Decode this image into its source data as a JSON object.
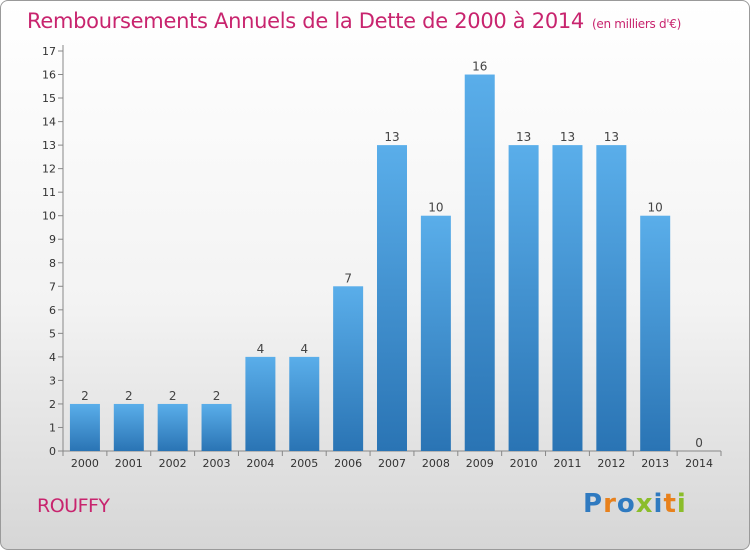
{
  "header": {
    "title": "Remboursements Annuels de la Dette de 2000 à 2014",
    "unit": "(en milliers d'€)"
  },
  "footer": {
    "place": "ROUFFY",
    "brand": "Proxiti"
  },
  "colors": {
    "title": "#c8246e",
    "bar_top": "#5aaeea",
    "bar_bottom": "#2a74b4",
    "brand_letters": [
      "#2f7ac0",
      "#e8811c",
      "#2f7ac0",
      "#8bbd2a",
      "#2f7ac0",
      "#e8811c",
      "#8bbd2a"
    ]
  },
  "chart_data": {
    "type": "bar",
    "title": "Remboursements Annuels de la Dette de 2000 à 2014",
    "xlabel": "",
    "ylabel": "",
    "ylim": [
      0,
      17
    ],
    "yticks": [
      0,
      1,
      2,
      3,
      4,
      5,
      6,
      7,
      8,
      9,
      10,
      11,
      12,
      13,
      14,
      15,
      16,
      17
    ],
    "grid": false,
    "categories": [
      "2000",
      "2001",
      "2002",
      "2003",
      "2004",
      "2005",
      "2006",
      "2007",
      "2008",
      "2009",
      "2010",
      "2011",
      "2012",
      "2013",
      "2014"
    ],
    "values": [
      2,
      2,
      2,
      2,
      4,
      4,
      7,
      13,
      10,
      16,
      13,
      13,
      13,
      10,
      0
    ]
  }
}
